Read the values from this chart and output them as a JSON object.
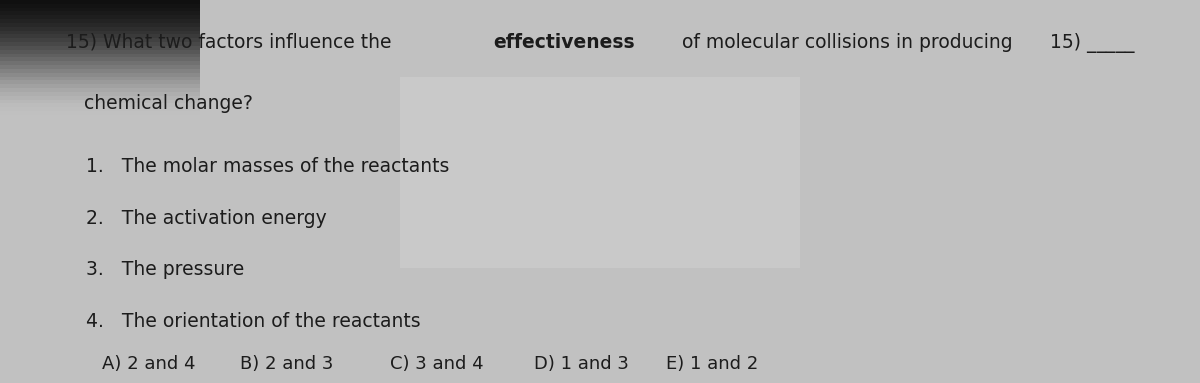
{
  "background_color": "#b8b8b8",
  "text_color": "#1c1c1c",
  "line1_part1": "15) What two factors influence the ",
  "line1_bold": "effectiveness",
  "line1_part2": " of molecular collisions in producing",
  "line2": "   chemical change?",
  "items": [
    "1.   The molar masses of the reactants",
    "2.   The activation energy",
    "3.   The pressure",
    "4.   The orientation of the reactants"
  ],
  "choices": [
    "A) 2 and 4",
    "B) 2 and 3",
    "C) 3 and 4",
    "D) 1 and 3",
    "E) 1 and 2"
  ],
  "answer_label": "15) _____",
  "font_size_main": 13.5,
  "font_size_choices": 13.0,
  "indent_q": 0.055,
  "indent_items": 0.072,
  "indent_choices": 0.085
}
